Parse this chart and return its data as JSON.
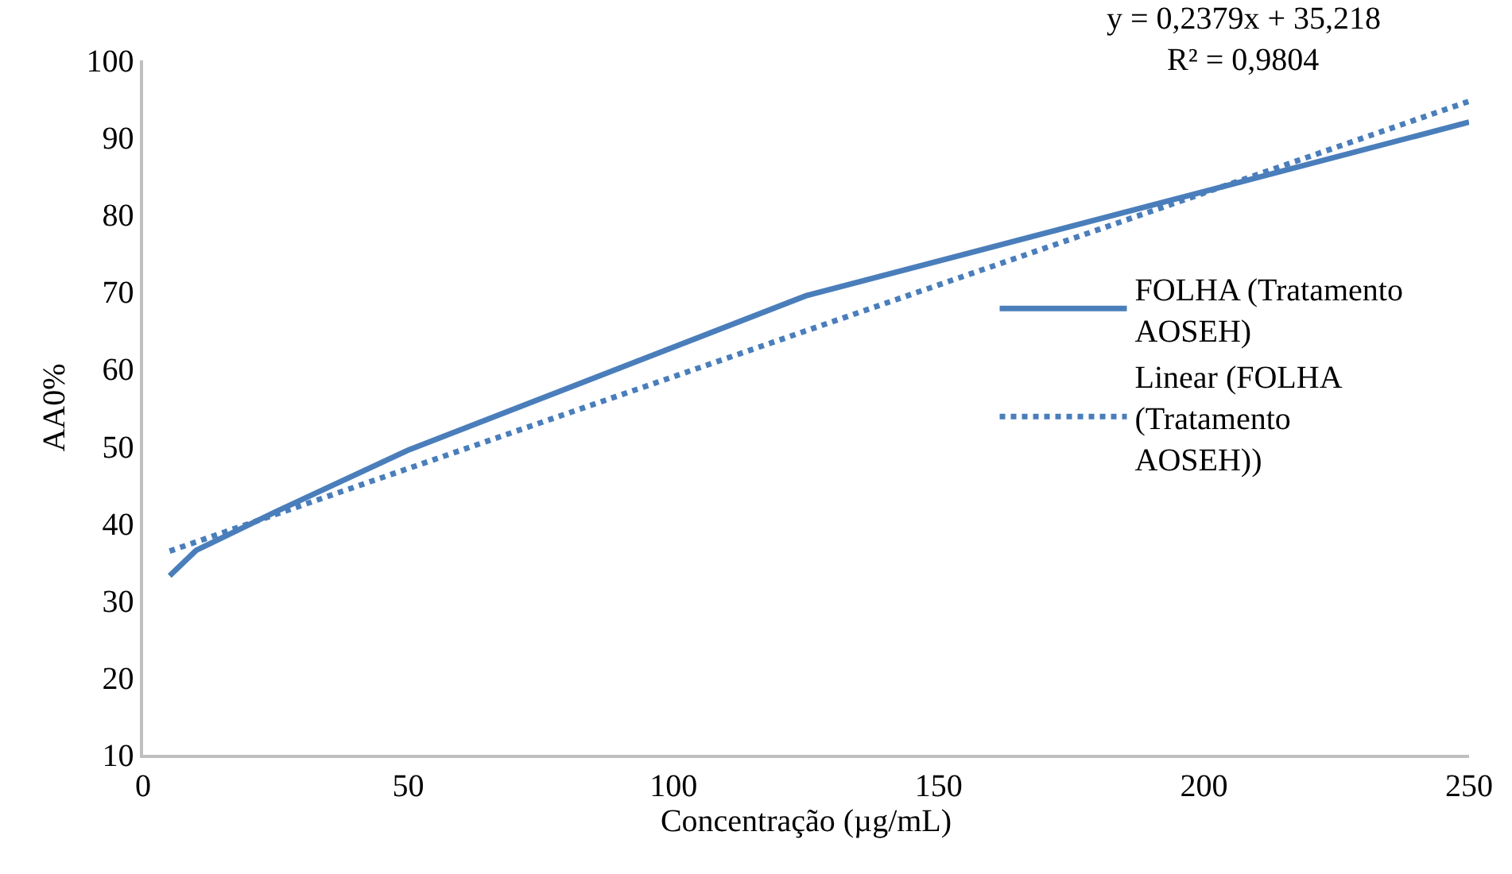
{
  "chart_data": {
    "type": "line",
    "xlabel": "Concentração (µg/mL)",
    "ylabel": "AA0%",
    "xlim": [
      0,
      250
    ],
    "xticks": [
      0,
      50,
      100,
      150,
      200,
      250
    ],
    "ylim": [
      10,
      100
    ],
    "yticks": [
      10,
      20,
      30,
      40,
      50,
      60,
      70,
      80,
      90,
      100
    ],
    "legend": "right",
    "marker": "none",
    "series": [
      {
        "name": "FOLHA (Tratamento AOSEH)",
        "color": "#4a7ebb",
        "line_style": "solid",
        "x": [
          5,
          10,
          25,
          50,
          125,
          250
        ],
        "values": [
          33.2,
          36.5,
          41.5,
          49.5,
          69.5,
          92.0
        ]
      },
      {
        "name": "Linear (FOLHA (Tratamento AOSEH))",
        "color": "#4a7ebb",
        "line_style": "dotted",
        "x": [
          5,
          250
        ],
        "values": [
          36.4,
          94.7
        ]
      }
    ],
    "annotations": [
      "y = 0,2379x + 35,218",
      "R² = 0,9804"
    ]
  }
}
